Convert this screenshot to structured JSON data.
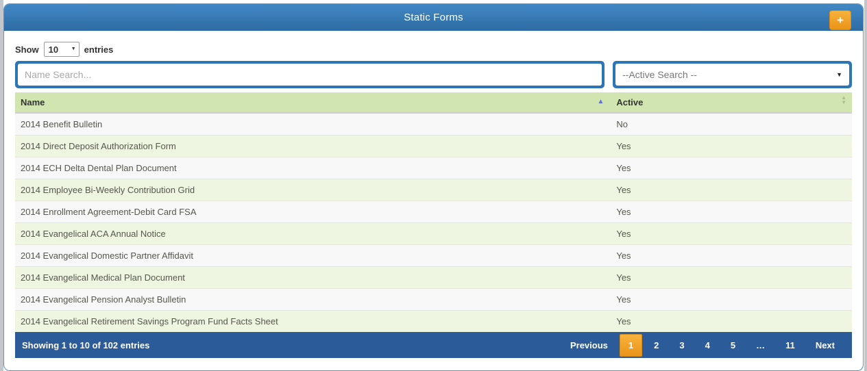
{
  "panel": {
    "title": "Static Forms"
  },
  "length_menu": {
    "prefix": "Show",
    "selected": "10",
    "suffix": "entries"
  },
  "search": {
    "name_placeholder": "Name Search...",
    "active_selected": "--Active Search --"
  },
  "table": {
    "columns": [
      {
        "label": "Name",
        "sort": "ascending"
      },
      {
        "label": "Active",
        "sort": "none"
      }
    ],
    "rows": [
      {
        "name": "2014 Benefit Bulletin",
        "active": "No"
      },
      {
        "name": "2014 Direct Deposit Authorization Form",
        "active": "Yes"
      },
      {
        "name": "2014 ECH Delta Dental Plan Document",
        "active": "Yes"
      },
      {
        "name": "2014 Employee Bi-Weekly Contribution Grid",
        "active": "Yes"
      },
      {
        "name": "2014 Enrollment Agreement-Debit Card FSA",
        "active": "Yes"
      },
      {
        "name": "2014 Evangelical ACA Annual Notice",
        "active": "Yes"
      },
      {
        "name": "2014 Evangelical Domestic Partner Affidavit",
        "active": "Yes"
      },
      {
        "name": "2014 Evangelical Medical Plan Document",
        "active": "Yes"
      },
      {
        "name": "2014 Evangelical Pension Analyst Bulletin",
        "active": "Yes"
      },
      {
        "name": "2014 Evangelical Retirement Savings Program Fund Facts Sheet",
        "active": "Yes"
      }
    ]
  },
  "footer": {
    "info": "Showing 1 to 10 of 102 entries",
    "pagination": {
      "items": [
        "Previous",
        "1",
        "2",
        "3",
        "4",
        "5",
        "…",
        "11",
        "Next"
      ],
      "active": "1"
    }
  },
  "icons": {
    "plus": "+",
    "caret_down": "▼",
    "sort_asc": "▲",
    "sort_up": "▲",
    "sort_down": "▼"
  },
  "colors": {
    "page-edge": "#c3c6cb",
    "panel-border": "#5b92c9",
    "header-top": "#4389c5",
    "header-bottom": "#2d6ba3",
    "orange-top": "#f8b23c",
    "orange-bottom": "#e99417",
    "orange-border": "#d8881b",
    "frame-blue": "#2e75b5",
    "thead-green": "#d1e5b0",
    "thead-border": "#cfcfcf",
    "row-odd": "#f8f8f8",
    "row-even": "#eef5e1",
    "row-border": "#e3e3e3",
    "footer-blue": "#2b5b98",
    "active-page-border": "#d18c1f",
    "sort-asc": "#5b6fd6"
  }
}
